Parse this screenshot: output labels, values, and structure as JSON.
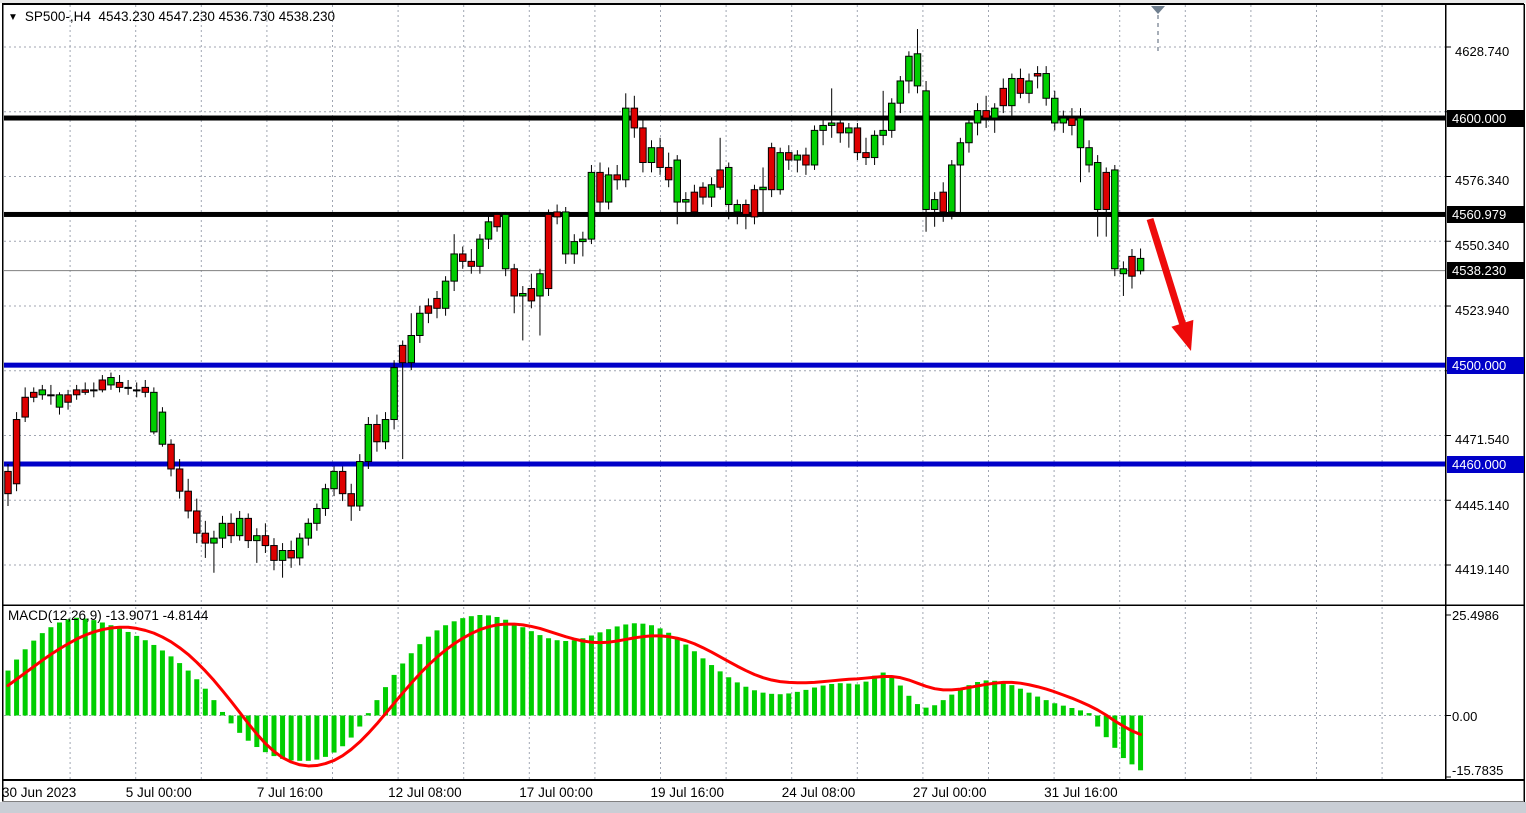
{
  "title": {
    "dropdown_icon": "▼",
    "symbol_period": "SP500-,H4",
    "open": "4543.230",
    "high": "4547.230",
    "low": "4536.730",
    "close": "4538.230"
  },
  "indicator": {
    "label": "MACD(12,26,9)",
    "macd_value": "-13.9071",
    "signal_value": "-4.8144"
  },
  "price_axis_labels": [
    "4628.740",
    "4576.340",
    "4550.340",
    "4523.940",
    "4471.540",
    "4445.140",
    "4419.140"
  ],
  "macd_axis_labels": [
    "25.4986",
    "0.00",
    "-15.7835"
  ],
  "time_axis_labels": [
    "30 Jun 2023",
    "5 Jul 00:00",
    "7 Jul 16:00",
    "12 Jul 08:00",
    "17 Jul 00:00",
    "19 Jul 16:00",
    "24 Jul 08:00",
    "27 Jul 00:00",
    "31 Jul 16:00"
  ],
  "levels": [
    {
      "label": "4600.000",
      "value": 4600.0,
      "color": "#000000",
      "kind": "resistance"
    },
    {
      "label": "4560.979",
      "value": 4560.979,
      "color": "#000000",
      "kind": "resistance"
    },
    {
      "label": "4500.000",
      "value": 4500.0,
      "color": "#0000C8",
      "kind": "support"
    },
    {
      "label": "4460.000",
      "value": 4460.0,
      "color": "#0000C8",
      "kind": "support"
    }
  ],
  "current_price": {
    "label": "4538.230",
    "value": 4538.23,
    "color": "#000000"
  },
  "arrow_annotation": {
    "direction": "down-right",
    "color": "#EE0B0B",
    "from_price": 4558,
    "to_price": 4505
  },
  "colors": {
    "bull_candle": "#00CE00",
    "bear_candle": "#DE0000",
    "macd_histogram": "#00CE00",
    "macd_signal": "#FF0000",
    "grid": "#A0A6B2",
    "support_line": "#0000C8",
    "resistance_line": "#000000"
  },
  "chart_data": {
    "type": "candlestick",
    "symbol": "SP500-",
    "timeframe": "H4",
    "price_range_visible": [
      4405,
      4648
    ],
    "macd_range_visible": [
      -15.7835,
      25.4986
    ],
    "candles": [
      [
        4457,
        4460,
        4443,
        4448,
        "r"
      ],
      [
        4478,
        4481,
        4449,
        4452,
        "r"
      ],
      [
        4487,
        4491,
        4477,
        4479,
        "r"
      ],
      [
        4489,
        4491,
        4485,
        4487,
        "r"
      ],
      [
        4488,
        4492,
        4486,
        4490,
        "g"
      ],
      [
        4488,
        4492,
        4484,
        4488,
        "g"
      ],
      [
        4488,
        4489,
        4480,
        4483,
        "g"
      ],
      [
        4488,
        4490,
        4482,
        4485,
        "r"
      ],
      [
        4488,
        4492,
        4486,
        4490,
        "r"
      ],
      [
        4490,
        4493,
        4488,
        4489,
        "r"
      ],
      [
        4490,
        4493,
        4487,
        4490,
        "g"
      ],
      [
        4494,
        4496,
        4489,
        4490,
        "r"
      ],
      [
        4492,
        4497,
        4490,
        4495,
        "g"
      ],
      [
        4493,
        4496,
        4489,
        4491,
        "r"
      ],
      [
        4491,
        4494,
        4488,
        4491,
        "r"
      ],
      [
        4490,
        4493,
        4487,
        4490,
        "g"
      ],
      [
        4491,
        4494,
        4487,
        4489,
        "r"
      ],
      [
        4489,
        4491,
        4472,
        4473,
        "g"
      ],
      [
        4481,
        4483,
        4467,
        4468,
        "g"
      ],
      [
        4468,
        4470,
        4455,
        4458,
        "r"
      ],
      [
        4458,
        4462,
        4446,
        4449,
        "r"
      ],
      [
        4449,
        4454,
        4438,
        4441,
        "r"
      ],
      [
        4441,
        4446,
        4428,
        4432,
        "r"
      ],
      [
        4432,
        4437,
        4422,
        4428,
        "r"
      ],
      [
        4428,
        4433,
        4416,
        4430,
        "g"
      ],
      [
        4430,
        4439,
        4426,
        4436,
        "g"
      ],
      [
        4436,
        4440,
        4428,
        4431,
        "r"
      ],
      [
        4431,
        4441,
        4429,
        4438,
        "g"
      ],
      [
        4438,
        4440,
        4426,
        4429,
        "r"
      ],
      [
        4429,
        4434,
        4420,
        4431,
        "g"
      ],
      [
        4431,
        4436,
        4424,
        4427,
        "r"
      ],
      [
        4427,
        4430,
        4417,
        4421,
        "r"
      ],
      [
        4421,
        4428,
        4414,
        4425,
        "g"
      ],
      [
        4425,
        4429,
        4418,
        4422,
        "r"
      ],
      [
        4422,
        4432,
        4419,
        4430,
        "g"
      ],
      [
        4430,
        4438,
        4427,
        4436,
        "g"
      ],
      [
        4436,
        4444,
        4433,
        4442,
        "g"
      ],
      [
        4442,
        4452,
        4439,
        4450,
        "g"
      ],
      [
        4450,
        4459,
        4447,
        4457,
        "g"
      ],
      [
        4457,
        4459,
        4445,
        4448,
        "r"
      ],
      [
        4448,
        4452,
        4437,
        4443,
        "r"
      ],
      [
        4443,
        4464,
        4441,
        4461,
        "g"
      ],
      [
        4461,
        4479,
        4458,
        4476,
        "g"
      ],
      [
        4476,
        4480,
        4465,
        4469,
        "r"
      ],
      [
        4469,
        4481,
        4466,
        4478,
        "g"
      ],
      [
        4478,
        4502,
        4474,
        4499,
        "g"
      ],
      [
        4508,
        4510,
        4462,
        4501,
        "r"
      ],
      [
        4501,
        4521,
        4498,
        4512,
        "g"
      ],
      [
        4512,
        4524,
        4509,
        4521,
        "g"
      ],
      [
        4524,
        4527,
        4517,
        4521,
        "r"
      ],
      [
        4527,
        4530,
        4519,
        4523,
        "r"
      ],
      [
        4523,
        4536,
        4520,
        4534,
        "g"
      ],
      [
        4534,
        4553,
        4530,
        4545,
        "g"
      ],
      [
        4545,
        4548,
        4539,
        4542,
        "r"
      ],
      [
        4542,
        4547,
        4537,
        4540,
        "r"
      ],
      [
        4540,
        4553,
        4537,
        4551,
        "g"
      ],
      [
        4551,
        4561,
        4547,
        4558,
        "g"
      ],
      [
        4561,
        4562,
        4554,
        4556,
        "r"
      ],
      [
        4561,
        4562,
        4536,
        4539,
        "g"
      ],
      [
        4539,
        4541,
        4521,
        4528,
        "r"
      ],
      [
        4528,
        4532,
        4510,
        4529,
        "g"
      ],
      [
        4531,
        4537,
        4523,
        4526,
        "r"
      ],
      [
        4537,
        4539,
        4512,
        4528,
        "g"
      ],
      [
        4531,
        4563,
        4528,
        4561,
        "r"
      ],
      [
        4562,
        4565,
        4557,
        4560,
        "r"
      ],
      [
        4562,
        4564,
        4541,
        4545,
        "g"
      ],
      [
        4545,
        4553,
        4541,
        4550,
        "g"
      ],
      [
        4550,
        4554,
        4544,
        4551,
        "g"
      ],
      [
        4551,
        4581,
        4549,
        4578,
        "g"
      ],
      [
        4578,
        4582,
        4562,
        4566,
        "r"
      ],
      [
        4566,
        4580,
        4563,
        4577,
        "g"
      ],
      [
        4577,
        4581,
        4571,
        4575,
        "r"
      ],
      [
        4575,
        4610,
        4572,
        4604,
        "g"
      ],
      [
        4604,
        4609,
        4592,
        4596,
        "r"
      ],
      [
        4596,
        4600,
        4578,
        4582,
        "r"
      ],
      [
        4582,
        4591,
        4578,
        4588,
        "g"
      ],
      [
        4588,
        4592,
        4577,
        4580,
        "r"
      ],
      [
        4580,
        4586,
        4572,
        4575,
        "r"
      ],
      [
        4583,
        4585,
        4557,
        4566,
        "g"
      ],
      [
        4566,
        4570,
        4561,
        4567,
        "g"
      ],
      [
        4570,
        4573,
        4560,
        4562,
        "r"
      ],
      [
        4572,
        4574,
        4565,
        4568,
        "r"
      ],
      [
        4568,
        4576,
        4564,
        4573,
        "g"
      ],
      [
        4579,
        4592,
        4571,
        4572,
        "r"
      ],
      [
        4580,
        4582,
        4559,
        4565,
        "g"
      ],
      [
        4565,
        4567,
        4557,
        4562,
        "g"
      ],
      [
        4565,
        4567,
        4555,
        4561,
        "r"
      ],
      [
        4571,
        4573,
        4557,
        4560,
        "r"
      ],
      [
        4572,
        4580,
        4560,
        4571,
        "g"
      ],
      [
        4588,
        4590,
        4568,
        4571,
        "r"
      ],
      [
        4571,
        4588,
        4569,
        4586,
        "g"
      ],
      [
        4586,
        4589,
        4579,
        4583,
        "r"
      ],
      [
        4583,
        4587,
        4578,
        4585,
        "g"
      ],
      [
        4585,
        4588,
        4577,
        4581,
        "r"
      ],
      [
        4581,
        4597,
        4579,
        4595,
        "g"
      ],
      [
        4595,
        4599,
        4589,
        4597,
        "g"
      ],
      [
        4597,
        4612,
        4592,
        4598,
        "g"
      ],
      [
        4598,
        4601,
        4590,
        4594,
        "r"
      ],
      [
        4594,
        4598,
        4588,
        4596,
        "g"
      ],
      [
        4596,
        4598,
        4583,
        4586,
        "r"
      ],
      [
        4586,
        4592,
        4581,
        4584,
        "r"
      ],
      [
        4584,
        4595,
        4581,
        4593,
        "g"
      ],
      [
        4593,
        4611,
        4589,
        4595,
        "g"
      ],
      [
        4595,
        4608,
        4592,
        4606,
        "g"
      ],
      [
        4606,
        4617,
        4602,
        4615,
        "g"
      ],
      [
        4615,
        4627,
        4610,
        4625,
        "g"
      ],
      [
        4613,
        4636,
        4610,
        4626,
        "g"
      ],
      [
        4611,
        4615,
        4554,
        4563,
        "g"
      ],
      [
        4563,
        4570,
        4556,
        4567,
        "g"
      ],
      [
        4570,
        4574,
        4558,
        4562,
        "r"
      ],
      [
        4562,
        4583,
        4559,
        4581,
        "g"
      ],
      [
        4581,
        4592,
        4560,
        4590,
        "g"
      ],
      [
        4590,
        4601,
        4586,
        4598,
        "g"
      ],
      [
        4598,
        4606,
        4593,
        4603,
        "g"
      ],
      [
        4603,
        4609,
        4596,
        4600,
        "r"
      ],
      [
        4600,
        4606,
        4594,
        4604,
        "g"
      ],
      [
        4612,
        4616,
        4602,
        4605,
        "r"
      ],
      [
        4605,
        4618,
        4601,
        4616,
        "g"
      ],
      [
        4616,
        4620,
        4608,
        4610,
        "r"
      ],
      [
        4610,
        4618,
        4606,
        4615,
        "g"
      ],
      [
        4617,
        4621,
        4612,
        4618,
        "r"
      ],
      [
        4618,
        4621,
        4605,
        4608,
        "g"
      ],
      [
        4608,
        4611,
        4595,
        4598,
        "g"
      ],
      [
        4598,
        4603,
        4594,
        4600,
        "g"
      ],
      [
        4600,
        4604,
        4593,
        4597,
        "r"
      ],
      [
        4600,
        4604,
        4574,
        4588,
        "g"
      ],
      [
        4588,
        4591,
        4578,
        4581,
        "g"
      ],
      [
        4582,
        4585,
        4552,
        4563,
        "g"
      ],
      [
        4578,
        4580,
        4552,
        4563,
        "r"
      ],
      [
        4579,
        4581,
        4536,
        4539,
        "g"
      ],
      [
        4539,
        4542,
        4528,
        4537,
        "g"
      ],
      [
        4544,
        4547,
        4531,
        4536,
        "r"
      ],
      [
        4543.2,
        4547.2,
        4536.7,
        4538.2,
        "g"
      ]
    ],
    "macd": {
      "params": [
        12,
        26,
        9
      ],
      "histogram": [
        11.4,
        14.2,
        16.8,
        19.0,
        20.9,
        22.4,
        23.6,
        24.4,
        24.8,
        24.6,
        24.2,
        23.6,
        22.9,
        22.1,
        21.2,
        20.2,
        19.1,
        17.9,
        16.5,
        15.0,
        13.3,
        11.4,
        9.2,
        6.8,
        3.9,
        0.9,
        -2.0,
        -4.4,
        -6.4,
        -8.0,
        -9.3,
        -10.3,
        -11.0,
        -11.4,
        -11.5,
        -11.5,
        -11.2,
        -10.5,
        -9.4,
        -7.8,
        -5.6,
        -2.8,
        0.6,
        3.9,
        7.2,
        10.3,
        13.2,
        15.8,
        18.1,
        20.0,
        21.6,
        22.9,
        23.9,
        24.7,
        25.2,
        25.5,
        25.4,
        25.0,
        24.3,
        23.4,
        22.4,
        21.4,
        20.4,
        19.6,
        19.1,
        18.9,
        19.1,
        19.6,
        20.3,
        21.1,
        21.9,
        22.6,
        23.1,
        23.4,
        23.3,
        22.9,
        22.1,
        21.0,
        19.6,
        18.0,
        16.3,
        14.5,
        12.8,
        11.2,
        9.7,
        8.4,
        7.3,
        6.4,
        5.8,
        5.5,
        5.4,
        5.6,
        6.0,
        6.5,
        7.1,
        7.6,
        8.0,
        8.2,
        8.1,
        7.9,
        8.6,
        10.1,
        10.9,
        9.9,
        7.6,
        5.0,
        2.9,
        2.0,
        2.6,
        3.9,
        5.3,
        6.6,
        7.7,
        8.5,
        8.9,
        8.8,
        8.4,
        7.7,
        6.8,
        5.8,
        4.8,
        3.9,
        3.1,
        2.5,
        1.9,
        1.3,
        0.6,
        -2.8,
        -5.5,
        -8.2,
        -10.8,
        -12.4,
        -13.9071
      ],
      "signal": [
        7.6,
        9.2,
        10.8,
        12.4,
        14.0,
        15.5,
        16.9,
        18.2,
        19.4,
        20.4,
        21.2,
        21.8,
        22.2,
        22.4,
        22.4,
        22.1,
        21.6,
        20.9,
        19.9,
        18.7,
        17.2,
        15.5,
        13.5,
        11.3,
        8.9,
        6.3,
        3.6,
        0.8,
        -2.0,
        -4.7,
        -7.1,
        -9.1,
        -10.7,
        -11.8,
        -12.5,
        -12.8,
        -12.7,
        -12.2,
        -11.4,
        -10.2,
        -8.6,
        -6.7,
        -4.5,
        -2.1,
        0.5,
        3.1,
        5.7,
        8.2,
        10.6,
        12.8,
        14.8,
        16.6,
        18.2,
        19.6,
        20.8,
        21.8,
        22.5,
        23.0,
        23.2,
        23.2,
        23.0,
        22.6,
        22.1,
        21.4,
        20.7,
        20.0,
        19.4,
        18.9,
        18.6,
        18.5,
        18.6,
        18.9,
        19.3,
        19.7,
        20.0,
        20.2,
        20.2,
        20.0,
        19.6,
        19.0,
        18.2,
        17.2,
        16.1,
        14.9,
        13.7,
        12.5,
        11.4,
        10.4,
        9.6,
        9.0,
        8.6,
        8.4,
        8.3,
        8.3,
        8.4,
        8.6,
        8.8,
        9.0,
        9.2,
        9.3,
        9.5,
        9.7,
        9.9,
        9.9,
        9.6,
        9.0,
        8.2,
        7.4,
        6.8,
        6.5,
        6.5,
        6.7,
        7.1,
        7.5,
        7.9,
        8.2,
        8.4,
        8.4,
        8.2,
        7.8,
        7.3,
        6.7,
        6.0,
        5.2,
        4.4,
        3.5,
        2.5,
        1.4,
        0.1,
        -1.4,
        -2.7,
        -3.9,
        -4.8144
      ]
    }
  }
}
